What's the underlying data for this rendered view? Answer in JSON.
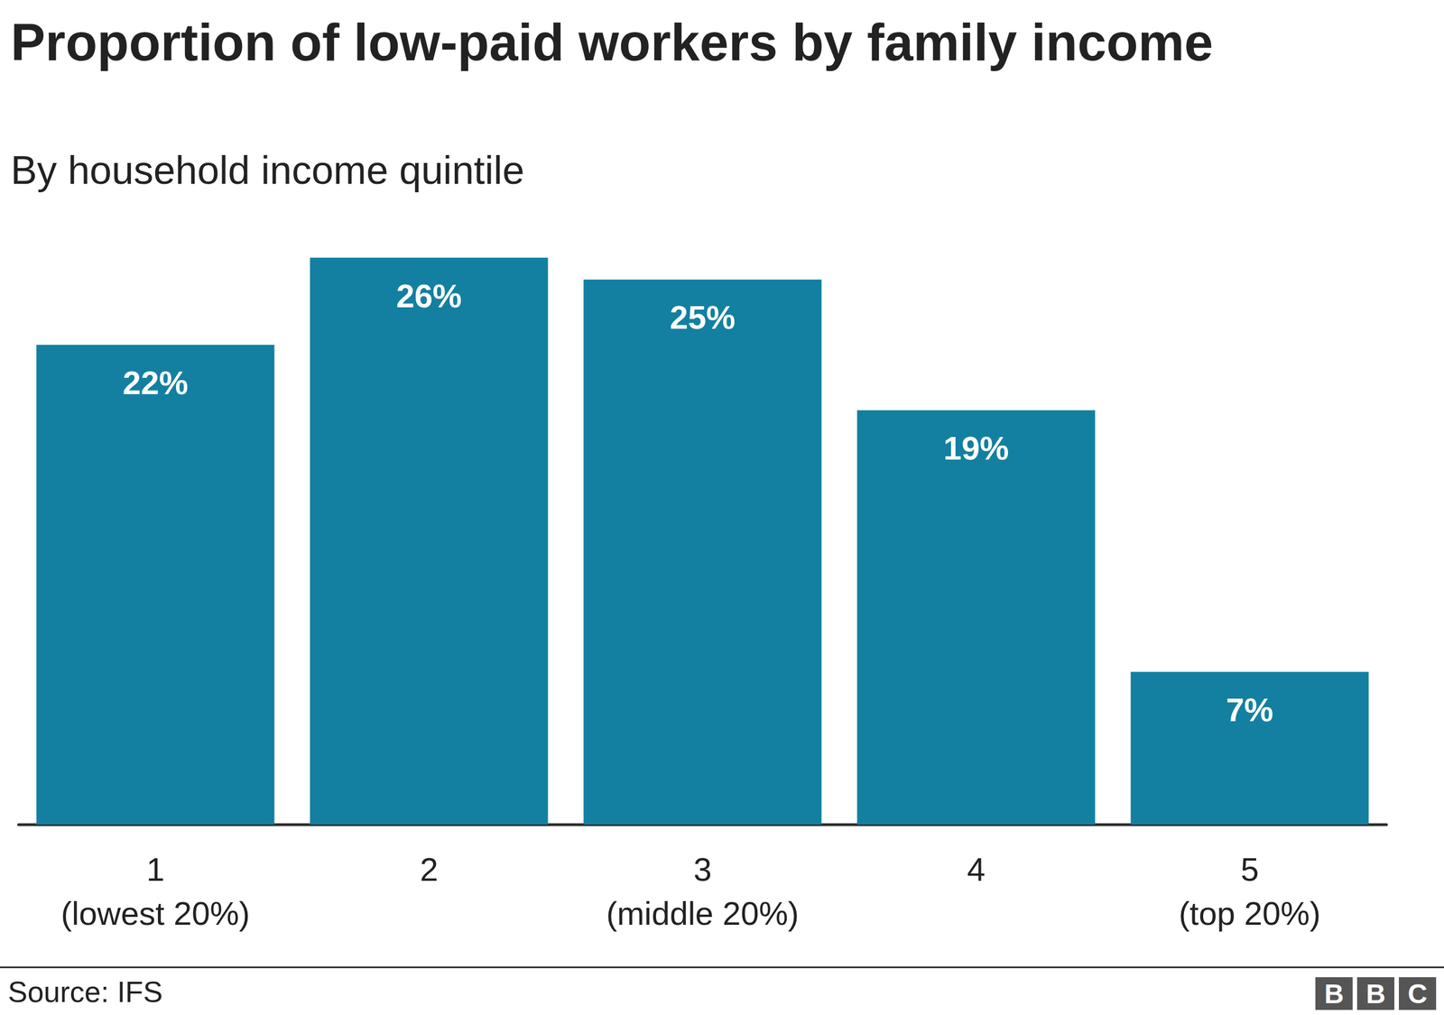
{
  "chart_data": {
    "type": "bar",
    "title": "Proportion of low-paid workers by family income",
    "subtitle": "By household income quintile",
    "categories": [
      "1\n(lowest 20%)",
      "2",
      "3\n(middle 20%)",
      "4",
      "5\n(top 20%)"
    ],
    "values": [
      22,
      26,
      25,
      19,
      7
    ],
    "value_labels": [
      "22%",
      "26%",
      "25%",
      "19%",
      "7%"
    ],
    "color": "#1380a1",
    "ylim": [
      0,
      26
    ],
    "data_labels": true,
    "tick_labels": "x",
    "grid": false,
    "source": "Source: IFS",
    "logo": "BBC"
  }
}
